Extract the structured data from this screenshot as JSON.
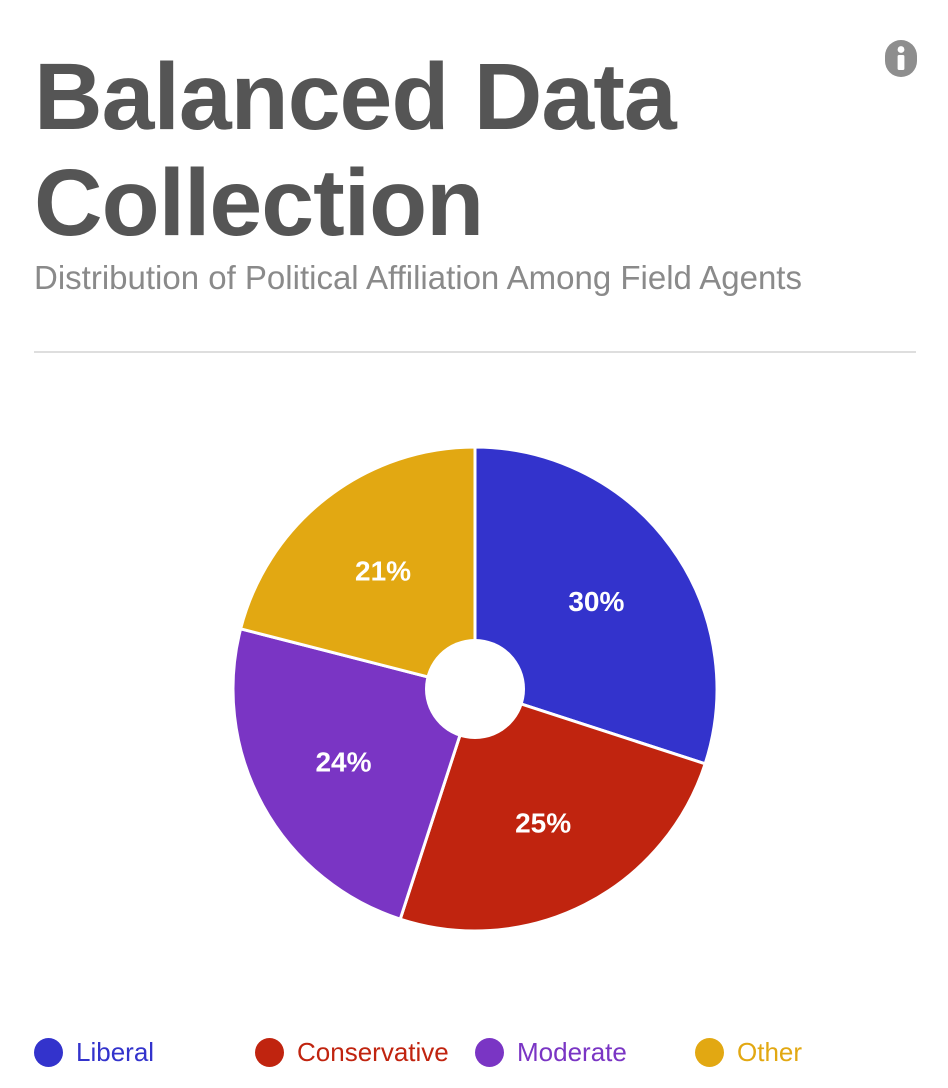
{
  "header": {
    "title": "Balanced Data Collection",
    "subtitle": "Distribution of Political Affiliation Among Field Agents",
    "info_icon": "info-icon"
  },
  "chart_data": {
    "type": "pie",
    "title": "Balanced Data Collection",
    "subtitle": "Distribution of Political Affiliation Among Field Agents",
    "categories": [
      "Liberal",
      "Conservative",
      "Moderate",
      "Other"
    ],
    "values": [
      30,
      25,
      24,
      21
    ],
    "value_labels": [
      "30%",
      "25%",
      "24%",
      "21%"
    ],
    "colors": [
      "#3333cc",
      "#c0240f",
      "#7a35c4",
      "#e2a812"
    ],
    "donut_hole": true,
    "legend_position": "bottom"
  },
  "legend": {
    "items": [
      {
        "label": "Liberal",
        "color": "#3333cc"
      },
      {
        "label": "Conservative",
        "color": "#c0240f"
      },
      {
        "label": "Moderate",
        "color": "#7a35c4"
      },
      {
        "label": "Other",
        "color": "#e2a812"
      }
    ]
  }
}
